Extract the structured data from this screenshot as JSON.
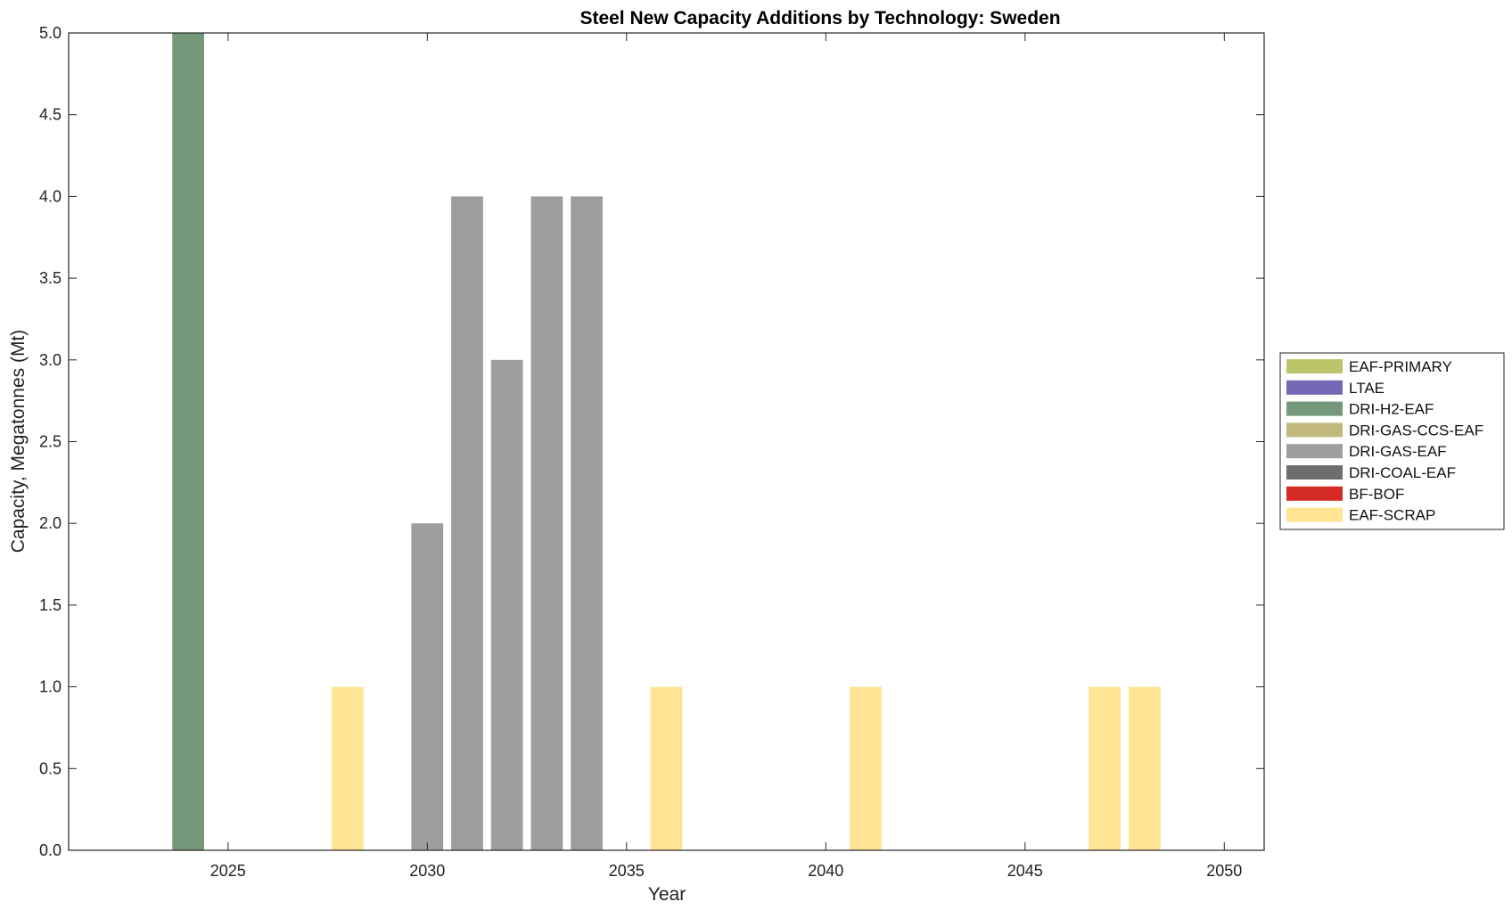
{
  "chart_data": {
    "type": "bar",
    "stacked": true,
    "title": "Steel New Capacity Additions by Technology: Sweden",
    "xlabel": "Year",
    "ylabel": "Capacity, Megatonnes (Mt)",
    "xlim": [
      2021,
      2051
    ],
    "ylim": [
      0,
      5
    ],
    "x_ticks": [
      2025,
      2030,
      2035,
      2040,
      2045,
      2050
    ],
    "y_ticks": [
      0,
      0.5,
      1,
      1.5,
      2,
      2.5,
      3,
      3.5,
      4,
      4.5,
      5
    ],
    "y_tick_labels": [
      "0.0",
      "0.5",
      "1.0",
      "1.5",
      "2.0",
      "2.5",
      "3.0",
      "3.5",
      "4.0",
      "4.5",
      "5.0"
    ],
    "grid": false,
    "legend_position": "right",
    "x": [
      2024,
      2025,
      2026,
      2027,
      2028,
      2029,
      2030,
      2031,
      2032,
      2033,
      2034,
      2035,
      2036,
      2037,
      2038,
      2039,
      2040,
      2041,
      2042,
      2043,
      2044,
      2045,
      2046,
      2047,
      2048,
      2049,
      2050
    ],
    "series": [
      {
        "name": "EAF-PRIMARY",
        "color": "#bcc46a",
        "values": [
          0,
          0,
          0,
          0,
          0,
          0,
          0,
          0,
          0,
          0,
          0,
          0,
          0,
          0,
          0,
          0,
          0,
          0,
          0,
          0,
          0,
          0,
          0,
          0,
          0,
          0,
          0
        ]
      },
      {
        "name": "LTAE",
        "color": "#7268b4",
        "values": [
          0,
          0,
          0,
          0,
          0,
          0,
          0,
          0,
          0,
          0,
          0,
          0,
          0,
          0,
          0,
          0,
          0,
          0,
          0,
          0,
          0,
          0,
          0,
          0,
          0,
          0,
          0
        ]
      },
      {
        "name": "DRI-H2-EAF",
        "color": "#75987b",
        "values": [
          5,
          0,
          0,
          0,
          0,
          0,
          0,
          0,
          0,
          0,
          0,
          0,
          0,
          0,
          0,
          0,
          0,
          0,
          0,
          0,
          0,
          0,
          0,
          0,
          0,
          0,
          0
        ]
      },
      {
        "name": "DRI-GAS-CCS-EAF",
        "color": "#c3b87e",
        "values": [
          0,
          0,
          0,
          0,
          0,
          0,
          0,
          0,
          0,
          0,
          0,
          0,
          0,
          0,
          0,
          0,
          0,
          0,
          0,
          0,
          0,
          0,
          0,
          0,
          0,
          0,
          0
        ]
      },
      {
        "name": "DRI-GAS-EAF",
        "color": "#9e9e9c",
        "values": [
          0,
          0,
          0,
          0,
          0,
          0,
          2,
          4,
          3,
          4,
          4,
          0,
          0,
          0,
          0,
          0,
          0,
          0,
          0,
          0,
          0,
          0,
          0,
          0,
          0,
          0,
          0
        ]
      },
      {
        "name": "DRI-COAL-EAF",
        "color": "#6e6e6e",
        "values": [
          0,
          0,
          0,
          0,
          0,
          0,
          0,
          0,
          0,
          0,
          0,
          0,
          0,
          0,
          0,
          0,
          0,
          0,
          0,
          0,
          0,
          0,
          0,
          0,
          0,
          0,
          0
        ]
      },
      {
        "name": "BF-BOF",
        "color": "#d32b23",
        "values": [
          0,
          0,
          0,
          0,
          0,
          0,
          0,
          0,
          0,
          0,
          0,
          0,
          0,
          0,
          0,
          0,
          0,
          0,
          0,
          0,
          0,
          0,
          0,
          0,
          0,
          0,
          0
        ]
      },
      {
        "name": "EAF-SCRAP",
        "color": "#fee493",
        "values": [
          0,
          0,
          0,
          0,
          1,
          0,
          0,
          0,
          0,
          0,
          0,
          0,
          1,
          0,
          0,
          0,
          0,
          1,
          0,
          0,
          0,
          0,
          0,
          1,
          1,
          0,
          0
        ]
      }
    ]
  }
}
